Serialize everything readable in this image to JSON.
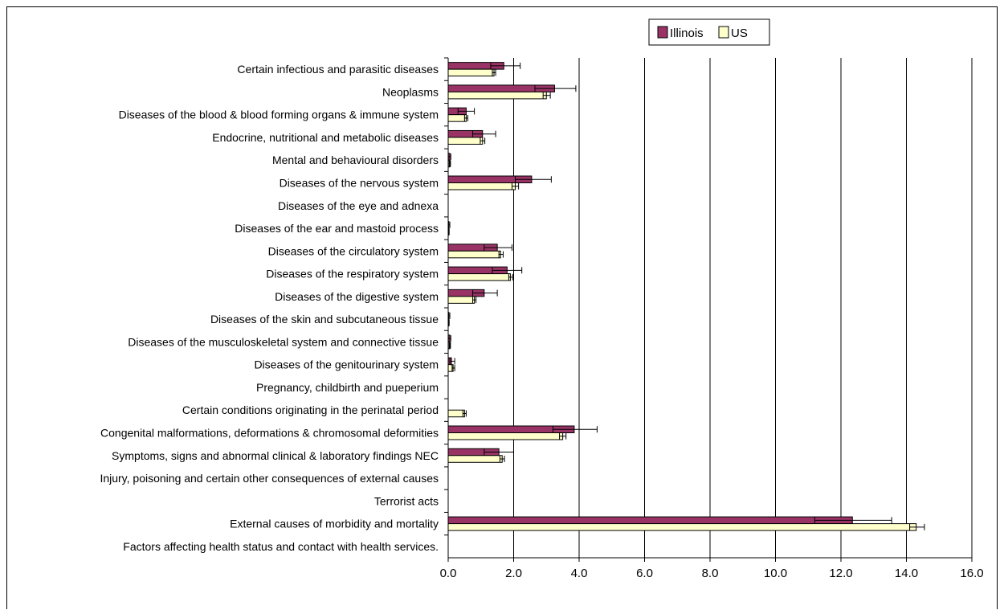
{
  "chart_data": {
    "type": "bar",
    "orientation": "horizontal",
    "xlim": [
      0,
      16
    ],
    "x_ticks": [
      "0.0",
      "2.0",
      "4.0",
      "6.0",
      "8.0",
      "10.0",
      "12.0",
      "14.0",
      "16.0"
    ],
    "grid": "vertical",
    "legend_position": "top-right",
    "colors": {
      "Illinois": "#993366",
      "US": "#ffffcc"
    },
    "categories": [
      "Certain infectious and parasitic diseases",
      "Neoplasms",
      "Diseases of the blood & blood forming organs & immune system",
      "Endocrine, nutritional and metabolic diseases",
      "Mental and behavioural disorders",
      "Diseases of the nervous system",
      "Diseases of the eye and adnexa",
      "Diseases of the ear and mastoid process",
      "Diseases of the circulatory system",
      "Diseases of the respiratory system",
      "Diseases of the digestive system",
      "Diseases of the skin and subcutaneous tissue",
      "Diseases of the musculoskeletal system and connective tissue",
      "Diseases of the genitourinary system",
      "Pregnancy, childbirth and pueperium",
      "Certain conditions originating in the perinatal period",
      "Congenital malformations, deformations & chromosomal deformities",
      "Symptoms, signs and abnormal clinical & laboratory findings NEC",
      "Injury, poisoning and certain other consequences of external causes",
      "Terrorist acts",
      "External causes of morbidity and mortality",
      "Factors affecting health status and contact with health services."
    ],
    "series": [
      {
        "name": "Illinois",
        "values": [
          1.7,
          3.25,
          0.55,
          1.05,
          0.05,
          2.55,
          0.0,
          0.02,
          1.5,
          1.8,
          1.1,
          0.02,
          0.05,
          0.1,
          0.0,
          0.0,
          3.85,
          1.55,
          0.0,
          0.0,
          12.35,
          0.0
        ],
        "err_low": [
          1.3,
          2.65,
          0.3,
          0.75,
          0.0,
          2.05,
          0.0,
          0.0,
          1.1,
          1.35,
          0.75,
          0.0,
          0.0,
          0.05,
          0.0,
          0.0,
          3.2,
          1.1,
          0.0,
          0.0,
          11.2,
          0.0
        ],
        "err_high": [
          2.2,
          3.9,
          0.8,
          1.45,
          0.08,
          3.15,
          0.0,
          0.05,
          1.95,
          2.25,
          1.5,
          0.05,
          0.08,
          0.2,
          0.0,
          0.0,
          4.55,
          2.0,
          0.0,
          0.0,
          13.55,
          0.0
        ]
      },
      {
        "name": "US",
        "values": [
          1.4,
          3.0,
          0.55,
          1.05,
          0.05,
          2.05,
          0.0,
          0.02,
          1.6,
          1.9,
          0.8,
          0.02,
          0.05,
          0.15,
          0.0,
          0.5,
          3.5,
          1.65,
          0.0,
          0.0,
          14.3,
          0.0
        ],
        "err_low": [
          1.35,
          2.9,
          0.5,
          0.98,
          0.03,
          1.95,
          0.0,
          0.01,
          1.55,
          1.85,
          0.75,
          0.01,
          0.03,
          0.12,
          0.0,
          0.45,
          3.4,
          1.58,
          0.0,
          0.0,
          14.1,
          0.0
        ],
        "err_high": [
          1.45,
          3.12,
          0.6,
          1.12,
          0.07,
          2.15,
          0.0,
          0.03,
          1.68,
          1.97,
          0.85,
          0.03,
          0.07,
          0.2,
          0.0,
          0.55,
          3.6,
          1.72,
          0.0,
          0.0,
          14.55,
          0.0
        ]
      }
    ]
  }
}
